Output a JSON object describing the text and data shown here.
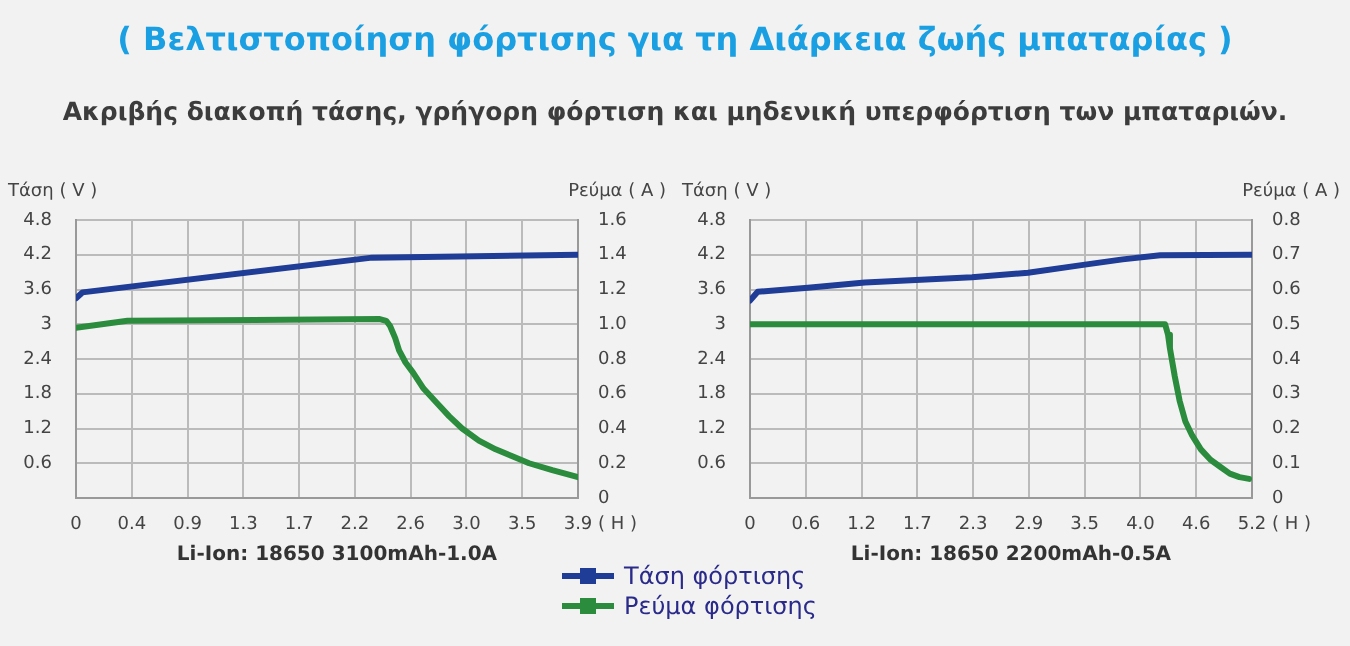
{
  "chart_data": [
    {
      "type": "line",
      "title": "( Βελτιστοποίηση φόρτισης για τη Διάρκεια ζωής μπαταρίας )",
      "subtitle": "Ακριβής διακοπή τάσης, γρήγορη φόρτιση και μηδενική υπερφόρτιση των μπαταριών.",
      "xlabel": "( H )",
      "ylabel": "Τάση ( V )",
      "y2label": "Ρεύμα ( A )",
      "annotations": [
        "Li-Ion: 18650 3100mAh-1.0A"
      ],
      "xlim": [
        0,
        3.9
      ],
      "xticks": [
        0,
        {
          "value": 0.4333,
          "label": "0.4"
        },
        {
          "value": 0.8667,
          "label": "0.9"
        },
        1.3,
        {
          "value": 1.7333,
          "label": "1.7"
        },
        {
          "value": 2.1667,
          "label": "2.2"
        },
        2.6,
        {
          "value": 3.0333,
          "label": "3.0"
        },
        {
          "value": 3.4667,
          "label": "3.5"
        },
        3.9
      ],
      "ylim": [
        0,
        4.8
      ],
      "yticks": [
        0.6,
        1.2,
        1.8,
        2.4,
        3,
        3.6,
        4.2,
        4.8
      ],
      "y2lim": [
        0,
        1.6
      ],
      "y2ticks": [
        {
          "value": 0,
          "label": "0"
        },
        {
          "value": 0.2,
          "label": "0.2"
        },
        {
          "value": 0.4,
          "label": "0.4"
        },
        {
          "value": 0.6,
          "label": "0.6"
        },
        {
          "value": 0.8,
          "label": "0.8"
        },
        {
          "value": 1.0,
          "label": "1.0"
        },
        {
          "value": 1.2,
          "label": "1.2"
        },
        {
          "value": 1.4,
          "label": "1.4"
        },
        {
          "value": 1.6,
          "label": "1.6"
        }
      ],
      "grid": true,
      "legend": "bottom",
      "series": [
        {
          "name": "Τάση φόρτισης",
          "color": "#1f3c96",
          "x": [
            0,
            0.05,
            2.3,
            3.9
          ],
          "values": [
            3.45,
            3.55,
            4.15,
            4.2
          ]
        },
        {
          "name": "Ρεύμα φόρτισης",
          "color": "#2a8c3c",
          "axis": "y2",
          "x": [
            0,
            0.4,
            2.36,
            2.41,
            2.44,
            2.48,
            2.51,
            2.56,
            2.62,
            2.7,
            2.8,
            2.9,
            3.0,
            3.13,
            3.26,
            3.39,
            3.52,
            3.7,
            3.9
          ],
          "values": [
            0.98,
            1.02,
            1.03,
            1.02,
            0.99,
            0.92,
            0.85,
            0.78,
            0.72,
            0.63,
            0.55,
            0.47,
            0.4,
            0.33,
            0.28,
            0.24,
            0.2,
            0.16,
            0.12
          ]
        }
      ]
    },
    {
      "type": "line",
      "xlabel": "( H )",
      "ylabel": "Τάση ( V )",
      "y2label": "Ρεύμα ( A )",
      "annotations": [
        "Li-Ion: 18650 2200mAh-0.5A"
      ],
      "xlim": [
        0,
        5.2
      ],
      "xticks": [
        0,
        {
          "value": 0.5778,
          "label": "0.6"
        },
        {
          "value": 1.1556,
          "label": "1.2"
        },
        {
          "value": 1.7333,
          "label": "1.7"
        },
        {
          "value": 2.3111,
          "label": "2.3"
        },
        {
          "value": 2.8889,
          "label": "2.9"
        },
        {
          "value": 3.4667,
          "label": "3.5"
        },
        {
          "value": 4.0444,
          "label": "4.0"
        },
        {
          "value": 4.6222,
          "label": "4.6"
        },
        5.2
      ],
      "ylim": [
        0,
        4.8
      ],
      "yticks": [
        0.6,
        1.2,
        1.8,
        2.4,
        3,
        3.6,
        4.2,
        4.8
      ],
      "y2lim": [
        0,
        0.8
      ],
      "y2ticks": [
        0,
        0.1,
        0.2,
        0.3,
        0.4,
        0.5,
        0.6,
        0.7,
        0.8
      ],
      "grid": true,
      "series": [
        {
          "color": "#1f3c96",
          "x": [
            0,
            0.08,
            0.6,
            1.19,
            2.3,
            2.88,
            3.47,
            3.86,
            4.25,
            5.2
          ],
          "values": [
            3.41,
            3.56,
            3.63,
            3.72,
            3.81,
            3.89,
            4.03,
            4.12,
            4.19,
            4.2
          ]
        },
        {
          "color": "#2a8c3c",
          "axis": "y2",
          "x": [
            0,
            4.3,
            4.33,
            4.35,
            4.4,
            4.45,
            4.51,
            4.58,
            4.67,
            4.77,
            4.87,
            4.97,
            5.07,
            5.17
          ],
          "values": [
            0.5,
            0.5,
            0.47,
            0.43,
            0.35,
            0.28,
            0.22,
            0.18,
            0.14,
            0.11,
            0.09,
            0.07,
            0.06,
            0.055
          ]
        }
      ]
    }
  ]
}
